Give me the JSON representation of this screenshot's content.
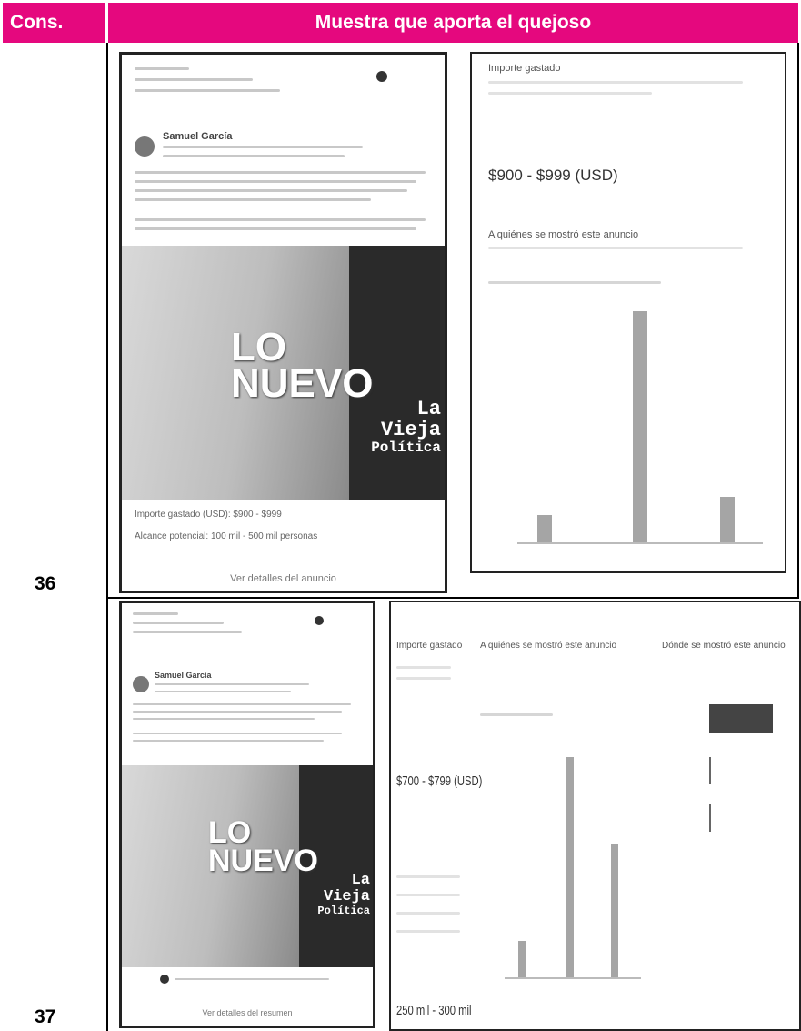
{
  "header": {
    "col1": "Cons.",
    "col2": "Muestra que aporta el quejoso"
  },
  "rows": [
    {
      "cons": "36",
      "post": {
        "author": "Samuel García",
        "headline1": "LO",
        "headline2": "NUEVO",
        "tag1": "La",
        "tag2": "Vieja",
        "tag3": "Política",
        "spend": "Importe gastado (USD): $900 - $999",
        "reach": "Alcance potencial: 100 mil - 500 mil personas",
        "link": "Ver detalles del anuncio"
      },
      "stats": {
        "spend_title": "Importe gastado",
        "spend_value": "$900 - $999 (USD)",
        "audience_title": "A quiénes se mostró este anuncio"
      }
    },
    {
      "cons": "37",
      "post": {
        "author": "Samuel García",
        "headline1": "LO",
        "headline2": "NUEVO",
        "tag1": "La",
        "tag2": "Vieja",
        "tag3": "Política",
        "link": "Ver detalles del resumen"
      },
      "stats": {
        "spend_title": "Importe gastado",
        "spend_value": "$700 - $799 (USD)",
        "reach_value": "250 mil - 300 mil",
        "audience_title": "A quiénes se mostró este anuncio",
        "region_title": "Dónde se mostró este anuncio"
      }
    }
  ]
}
